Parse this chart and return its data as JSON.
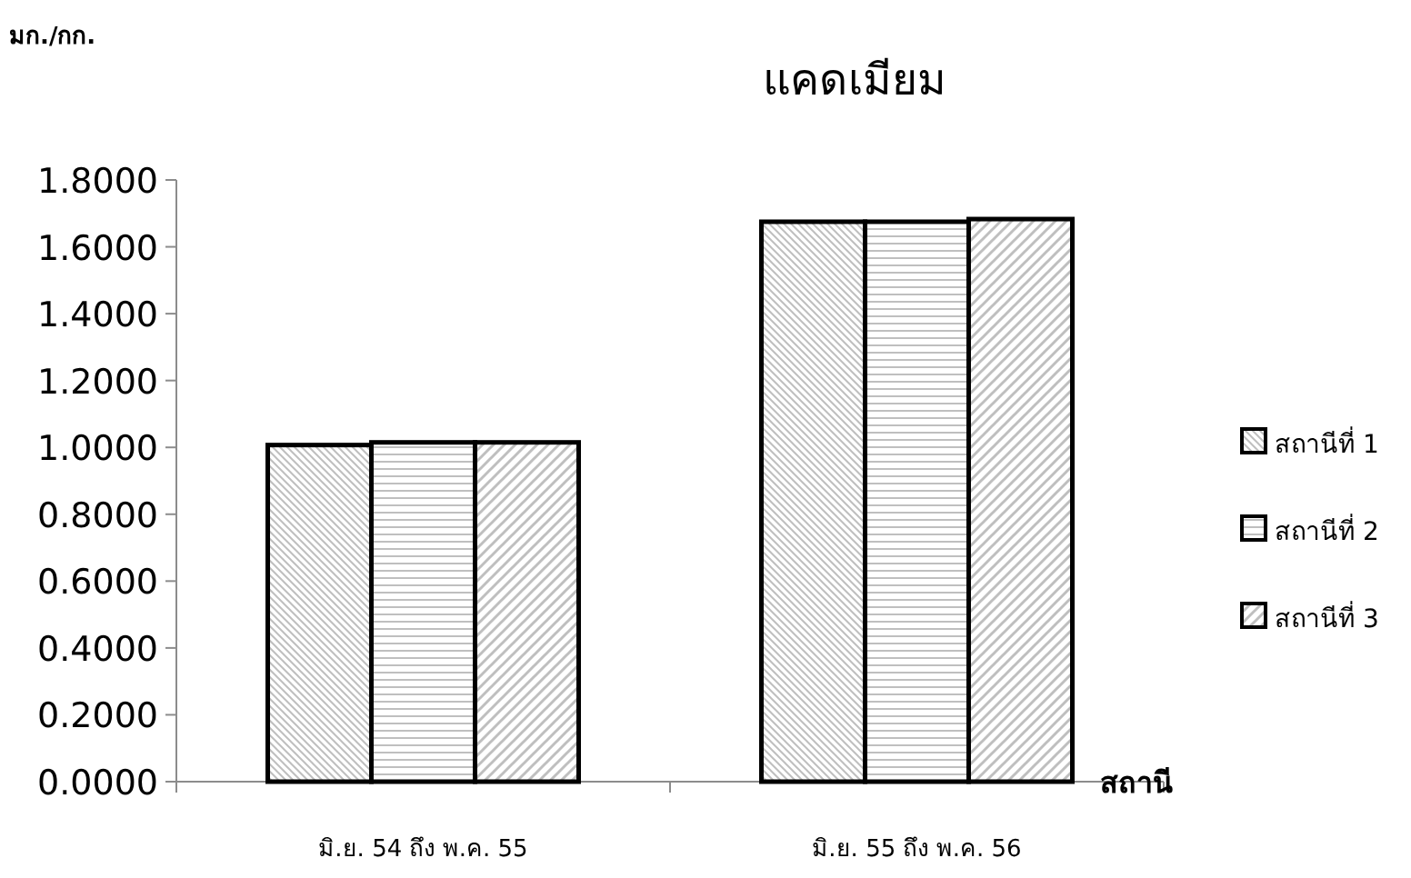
{
  "chart_data": {
    "type": "bar",
    "title": "แคดเมียม",
    "ylabel": "มก./กก.",
    "xlabel": "สถานี",
    "categories": [
      "มิ.ย. 54 ถึง พ.ค. 55",
      "มิ.ย. 55 ถึง พ.ค. 56"
    ],
    "series": [
      {
        "name": "สถานีที่ 1",
        "color": "#000000",
        "values": [
          1.007,
          1.675
        ]
      },
      {
        "name": "สถานีที่ 2",
        "color": "#000000",
        "values": [
          1.015,
          1.675
        ]
      },
      {
        "name": "สถานีที่ 3",
        "color": "#000000",
        "values": [
          1.015,
          1.683
        ]
      }
    ],
    "ylim": [
      0,
      1.8
    ],
    "yticks": [
      {
        "value": 0,
        "label": "0.0000"
      },
      {
        "value": 0.2,
        "label": "0.2000"
      },
      {
        "value": 0.4,
        "label": "0.4000"
      },
      {
        "value": 0.6,
        "label": "0.6000"
      },
      {
        "value": 0.8,
        "label": "0.8000"
      },
      {
        "value": 1.0,
        "label": "1.0000"
      },
      {
        "value": 1.2,
        "label": "1.2000"
      },
      {
        "value": 1.4,
        "label": "1.4000"
      },
      {
        "value": 1.6,
        "label": "1.6000"
      },
      {
        "value": 1.8,
        "label": "1.8000"
      }
    ],
    "grid": false,
    "legend": "right"
  }
}
